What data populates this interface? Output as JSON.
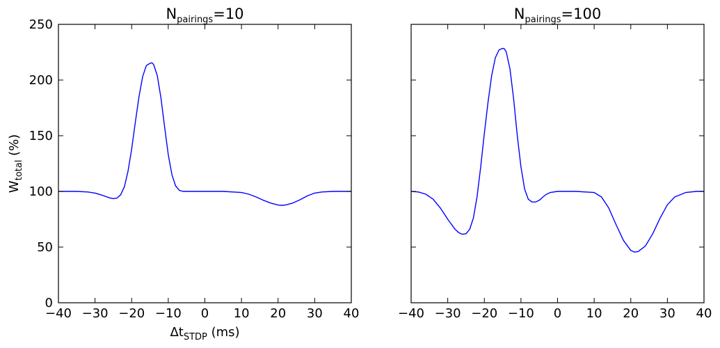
{
  "chart_data": [
    {
      "type": "line",
      "title": {
        "main": "N",
        "sub": "pairings",
        "suffix": "=10"
      },
      "xlabel": {
        "main": "Δt",
        "sub": "STDP",
        "suffix": " (ms)"
      },
      "ylabel": {
        "main": "W",
        "sub": "total",
        "suffix": " (%)"
      },
      "xlim": [
        -40,
        40
      ],
      "ylim": [
        0,
        250
      ],
      "xticks": [
        -40,
        -30,
        -20,
        -10,
        0,
        10,
        20,
        30,
        40
      ],
      "yticks": [
        0,
        50,
        100,
        150,
        200,
        250
      ],
      "xtick_labels": [
        "−40",
        "−30",
        "−20",
        "−10",
        "0",
        "10",
        "20",
        "30",
        "40"
      ],
      "ytick_labels": [
        "0",
        "50",
        "100",
        "150",
        "200",
        "250"
      ],
      "show_yticklabels": true,
      "grid": false,
      "line_color": "#0000ff",
      "series": [
        {
          "x": [
            -40,
            -35,
            -32,
            -30,
            -28,
            -26,
            -25,
            -24,
            -23,
            -22,
            -21,
            -20,
            -19,
            -18,
            -17,
            -16,
            -15,
            -14.5,
            -14,
            -13,
            -12,
            -11,
            -10,
            -9,
            -8,
            -7,
            -6,
            -5,
            -3,
            0,
            5,
            10,
            12,
            14,
            16,
            18,
            20,
            21,
            22,
            24,
            26,
            28,
            30,
            32,
            35,
            40
          ],
          "y": [
            100,
            100,
            99.5,
            98.5,
            96.5,
            94.2,
            93.5,
            94,
            97,
            104,
            118,
            138,
            162,
            185,
            203,
            213,
            215,
            215.5,
            214,
            204,
            184,
            158,
            133,
            115,
            105,
            101,
            100,
            100,
            100,
            100,
            100,
            99,
            97.5,
            95,
            92,
            89.5,
            87.8,
            87.5,
            87.8,
            89.5,
            92.5,
            96,
            98.5,
            99.5,
            100,
            100
          ]
        }
      ]
    },
    {
      "type": "line",
      "title": {
        "main": "N",
        "sub": "pairings",
        "suffix": "=100"
      },
      "xlim": [
        -40,
        40
      ],
      "ylim": [
        0,
        250
      ],
      "xticks": [
        -40,
        -30,
        -20,
        -10,
        0,
        10,
        20,
        30,
        40
      ],
      "yticks": [
        0,
        50,
        100,
        150,
        200,
        250
      ],
      "xtick_labels": [
        "−40",
        "−30",
        "−20",
        "−10",
        "0",
        "10",
        "20",
        "30",
        "40"
      ],
      "show_yticklabels": false,
      "grid": false,
      "line_color": "#0000ff",
      "series": [
        {
          "x": [
            -40,
            -38,
            -36,
            -34,
            -32,
            -30,
            -28,
            -27,
            -26,
            -25,
            -24,
            -23,
            -22,
            -21,
            -20,
            -19,
            -18,
            -17,
            -16,
            -15,
            -14.5,
            -14,
            -13,
            -12,
            -11,
            -10,
            -9,
            -8,
            -7,
            -6,
            -5,
            -4,
            -3,
            -2,
            0,
            5,
            10,
            12,
            14,
            16,
            18,
            20,
            21,
            22,
            24,
            26,
            28,
            30,
            32,
            35,
            38,
            40
          ],
          "y": [
            100,
            99.5,
            97.5,
            93,
            85,
            75,
            66,
            63,
            61.5,
            62,
            66,
            76,
            95,
            122,
            152,
            180,
            204,
            220,
            227,
            228.5,
            228,
            225,
            210,
            183,
            150,
            122,
            102,
            93,
            90.5,
            90.5,
            92,
            95,
            97.5,
            99,
            100,
            100,
            99,
            95,
            85,
            70,
            56,
            47,
            45.5,
            46,
            51,
            62,
            76,
            88,
            95,
            99,
            100,
            100
          ]
        }
      ]
    }
  ]
}
